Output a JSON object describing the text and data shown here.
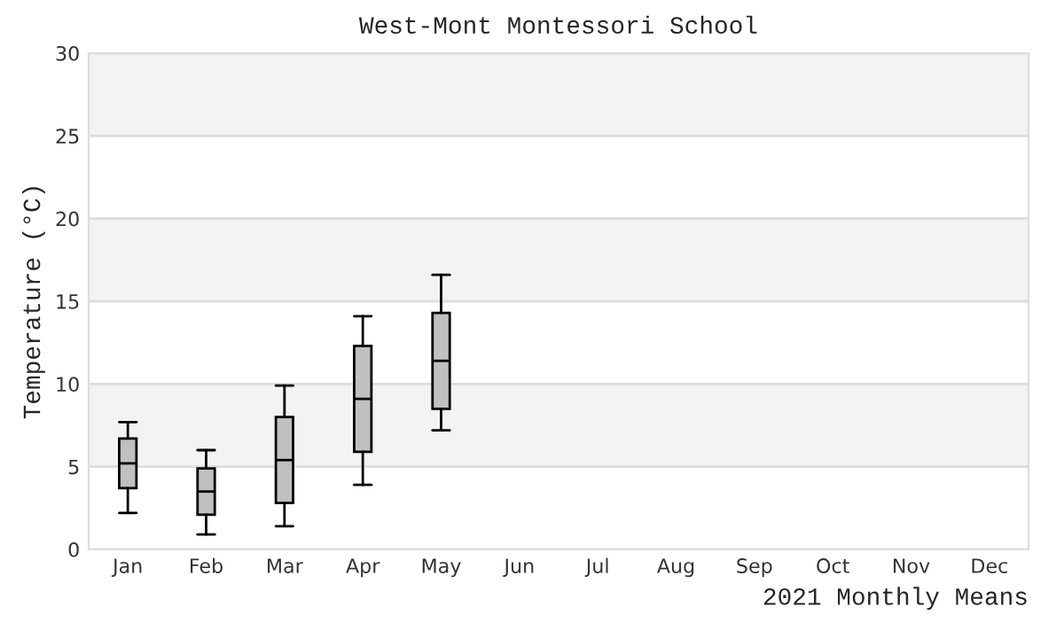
{
  "chart_data": {
    "type": "box",
    "title": "West-Mont Montessori School",
    "xlabel": "2021 Monthly Means",
    "ylabel": "Temperature (°C)",
    "categories": [
      "Jan",
      "Feb",
      "Mar",
      "Apr",
      "May",
      "Jun",
      "Jul",
      "Aug",
      "Sep",
      "Oct",
      "Nov",
      "Dec"
    ],
    "boxes": [
      {
        "low": 2.2,
        "q1": 3.7,
        "median": 5.2,
        "q3": 6.7,
        "high": 7.7
      },
      {
        "low": 0.9,
        "q1": 2.1,
        "median": 3.5,
        "q3": 4.9,
        "high": 6.0
      },
      {
        "low": 1.4,
        "q1": 2.8,
        "median": 5.4,
        "q3": 8.0,
        "high": 9.9
      },
      {
        "low": 3.9,
        "q1": 5.9,
        "median": 9.1,
        "q3": 12.3,
        "high": 14.1
      },
      {
        "low": 7.2,
        "q1": 8.5,
        "median": 11.4,
        "q3": 14.3,
        "high": 16.6
      },
      null,
      null,
      null,
      null,
      null,
      null,
      null
    ],
    "color": "#c0c0c0",
    "ylim": [
      0,
      30
    ],
    "yticks": [
      0,
      5,
      10,
      15,
      20,
      25,
      30
    ],
    "grid": "y"
  }
}
